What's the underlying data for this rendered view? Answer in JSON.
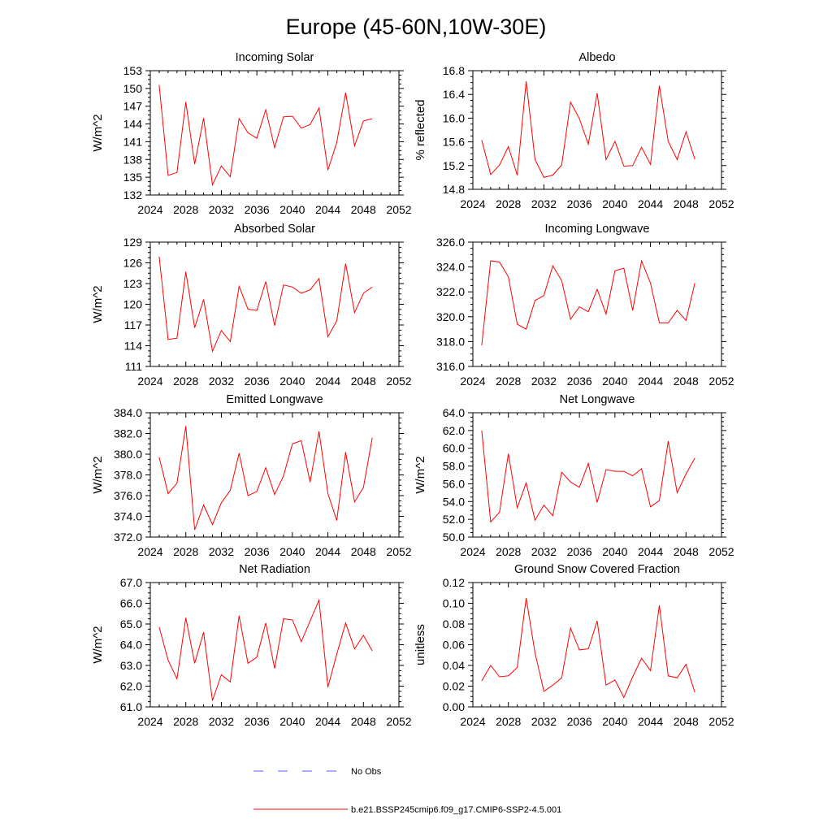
{
  "figure": {
    "title": "Europe (45-60N,10W-30E)"
  },
  "legend": {
    "entries": [
      {
        "label": "No Obs",
        "color": "#5a5aff",
        "dash": true
      },
      {
        "label": "b.e21.BSSP245cmip6.f09_g17.CMIP6-SSP2-4.5.001",
        "color": "#ff0000",
        "dash": false
      }
    ]
  },
  "chart_data": [
    {
      "type": "line",
      "title": "Incoming Solar",
      "xlabel": "",
      "ylabel": "W/m^2",
      "xlim": [
        2024,
        2052
      ],
      "ylim": [
        132,
        153
      ],
      "xticks": [
        2024,
        2028,
        2032,
        2036,
        2040,
        2044,
        2048,
        2052
      ],
      "yticks": [
        132,
        135,
        138,
        141,
        144,
        147,
        150,
        153
      ],
      "ytick_labels": [
        "132",
        "135",
        "138",
        "141",
        "144",
        "147",
        "150",
        "153"
      ],
      "grid": false,
      "series": [
        {
          "color": "#ff0000",
          "x": [
            2025,
            2026,
            2027,
            2028,
            2029,
            2030,
            2031,
            2032,
            2033,
            2034,
            2035,
            2036,
            2037,
            2038,
            2039,
            2040,
            2041,
            2042,
            2043,
            2044,
            2045,
            2046,
            2047,
            2048,
            2049
          ],
          "values": [
            150.6,
            135.3,
            135.8,
            147.7,
            137.2,
            145.0,
            133.7,
            136.9,
            135.1,
            144.9,
            142.5,
            141.6,
            146.4,
            140.0,
            145.2,
            145.3,
            143.3,
            143.9,
            146.7,
            136.2,
            140.9,
            149.3,
            140.3,
            144.5,
            144.9
          ]
        }
      ]
    },
    {
      "type": "line",
      "title": "Albedo",
      "xlabel": "",
      "ylabel": "% reflected",
      "xlim": [
        2024,
        2052
      ],
      "ylim": [
        14.8,
        16.8
      ],
      "xticks": [
        2024,
        2028,
        2032,
        2036,
        2040,
        2044,
        2048,
        2052
      ],
      "yticks": [
        14.8,
        15.2,
        15.6,
        16.0,
        16.4,
        16.8
      ],
      "ytick_labels": [
        "14.8",
        "15.2",
        "15.6",
        "16.0",
        "16.4",
        "16.8"
      ],
      "grid": false,
      "series": [
        {
          "color": "#ff0000",
          "x": [
            2025,
            2026,
            2027,
            2028,
            2029,
            2030,
            2031,
            2032,
            2033,
            2034,
            2035,
            2036,
            2037,
            2038,
            2039,
            2040,
            2041,
            2042,
            2043,
            2044,
            2045,
            2046,
            2047,
            2048,
            2049
          ],
          "values": [
            15.63,
            15.05,
            15.21,
            15.52,
            15.04,
            16.62,
            15.3,
            15.0,
            15.04,
            15.21,
            16.27,
            15.99,
            15.56,
            16.42,
            15.3,
            15.61,
            15.19,
            15.2,
            15.51,
            15.22,
            16.55,
            15.61,
            15.3,
            15.77,
            15.31
          ]
        }
      ]
    },
    {
      "type": "line",
      "title": "Absorbed Solar",
      "xlabel": "",
      "ylabel": "W/m^2",
      "xlim": [
        2024,
        2052
      ],
      "ylim": [
        111,
        129
      ],
      "xticks": [
        2024,
        2028,
        2032,
        2036,
        2040,
        2044,
        2048,
        2052
      ],
      "yticks": [
        111,
        114,
        117,
        120,
        123,
        126,
        129
      ],
      "ytick_labels": [
        "111",
        "114",
        "117",
        "120",
        "123",
        "126",
        "129"
      ],
      "grid": false,
      "series": [
        {
          "color": "#ff0000",
          "x": [
            2025,
            2026,
            2027,
            2028,
            2029,
            2030,
            2031,
            2032,
            2033,
            2034,
            2035,
            2036,
            2037,
            2038,
            2039,
            2040,
            2041,
            2042,
            2043,
            2044,
            2045,
            2046,
            2047,
            2048,
            2049
          ],
          "values": [
            126.9,
            114.9,
            115.1,
            124.7,
            116.6,
            120.7,
            113.2,
            116.2,
            114.6,
            122.6,
            119.3,
            119.1,
            123.3,
            116.9,
            122.8,
            122.5,
            121.6,
            122.1,
            123.7,
            115.3,
            117.6,
            125.9,
            118.8,
            121.6,
            122.5
          ]
        }
      ]
    },
    {
      "type": "line",
      "title": "Incoming Longwave",
      "xlabel": "",
      "ylabel": "",
      "xlim": [
        2024,
        2052
      ],
      "ylim": [
        316.0,
        326.0
      ],
      "xticks": [
        2024,
        2028,
        2032,
        2036,
        2040,
        2044,
        2048,
        2052
      ],
      "yticks": [
        316.0,
        318.0,
        320.0,
        322.0,
        324.0,
        326.0
      ],
      "ytick_labels": [
        "316.0",
        "318.0",
        "320.0",
        "322.0",
        "324.0",
        "326.0"
      ],
      "grid": false,
      "series": [
        {
          "color": "#ff0000",
          "x": [
            2025,
            2026,
            2027,
            2028,
            2029,
            2030,
            2031,
            2032,
            2033,
            2034,
            2035,
            2036,
            2037,
            2038,
            2039,
            2040,
            2041,
            2042,
            2043,
            2044,
            2045,
            2046,
            2047,
            2048,
            2049
          ],
          "values": [
            317.7,
            324.5,
            324.4,
            323.2,
            319.4,
            319.0,
            321.3,
            321.7,
            324.1,
            322.9,
            319.8,
            320.8,
            320.4,
            322.2,
            320.2,
            323.7,
            323.9,
            320.5,
            324.5,
            322.7,
            319.5,
            319.5,
            320.5,
            319.7,
            322.7
          ]
        }
      ]
    },
    {
      "type": "line",
      "title": "Emitted Longwave",
      "xlabel": "",
      "ylabel": "W/m^2",
      "xlim": [
        2024,
        2052
      ],
      "ylim": [
        372.0,
        384.0
      ],
      "xticks": [
        2024,
        2028,
        2032,
        2036,
        2040,
        2044,
        2048,
        2052
      ],
      "yticks": [
        372.0,
        374.0,
        376.0,
        378.0,
        380.0,
        382.0,
        384.0
      ],
      "ytick_labels": [
        "372.0",
        "374.0",
        "376.0",
        "378.0",
        "380.0",
        "382.0",
        "384.0"
      ],
      "grid": false,
      "series": [
        {
          "color": "#ff0000",
          "x": [
            2025,
            2026,
            2027,
            2028,
            2029,
            2030,
            2031,
            2032,
            2033,
            2034,
            2035,
            2036,
            2037,
            2038,
            2039,
            2040,
            2041,
            2042,
            2043,
            2044,
            2045,
            2046,
            2047,
            2048,
            2049
          ],
          "values": [
            379.7,
            376.2,
            377.2,
            382.7,
            372.7,
            375.1,
            373.2,
            375.3,
            376.5,
            380.1,
            376.0,
            376.4,
            378.7,
            376.1,
            377.9,
            381.0,
            381.3,
            377.3,
            382.2,
            376.2,
            373.6,
            380.2,
            375.4,
            376.8,
            381.6
          ]
        }
      ]
    },
    {
      "type": "line",
      "title": "Net Longwave",
      "xlabel": "",
      "ylabel": "W/m^2",
      "xlim": [
        2024,
        2052
      ],
      "ylim": [
        50.0,
        64.0
      ],
      "xticks": [
        2024,
        2028,
        2032,
        2036,
        2040,
        2044,
        2048,
        2052
      ],
      "yticks": [
        50.0,
        52.0,
        54.0,
        56.0,
        58.0,
        60.0,
        62.0,
        64.0
      ],
      "ytick_labels": [
        "50.0",
        "52.0",
        "54.0",
        "56.0",
        "58.0",
        "60.0",
        "62.0",
        "64.0"
      ],
      "grid": false,
      "series": [
        {
          "color": "#ff0000",
          "x": [
            2025,
            2026,
            2027,
            2028,
            2029,
            2030,
            2031,
            2032,
            2033,
            2034,
            2035,
            2036,
            2037,
            2038,
            2039,
            2040,
            2041,
            2042,
            2043,
            2044,
            2045,
            2046,
            2047,
            2048,
            2049
          ],
          "values": [
            62.0,
            51.7,
            52.8,
            59.4,
            53.3,
            56.1,
            51.9,
            53.6,
            52.4,
            57.3,
            56.2,
            55.6,
            58.3,
            53.9,
            57.6,
            57.4,
            57.4,
            56.9,
            57.7,
            53.4,
            54.1,
            60.8,
            55.0,
            57.1,
            58.9
          ]
        }
      ]
    },
    {
      "type": "line",
      "title": "Net Radiation",
      "xlabel": "",
      "ylabel": "W/m^2",
      "xlim": [
        2024,
        2052
      ],
      "ylim": [
        61.0,
        67.0
      ],
      "xticks": [
        2024,
        2028,
        2032,
        2036,
        2040,
        2044,
        2048,
        2052
      ],
      "yticks": [
        61.0,
        62.0,
        63.0,
        64.0,
        65.0,
        66.0,
        67.0
      ],
      "ytick_labels": [
        "61.0",
        "62.0",
        "63.0",
        "64.0",
        "65.0",
        "66.0",
        "67.0"
      ],
      "grid": false,
      "series": [
        {
          "color": "#ff0000",
          "x": [
            2025,
            2026,
            2027,
            2028,
            2029,
            2030,
            2031,
            2032,
            2033,
            2034,
            2035,
            2036,
            2037,
            2038,
            2039,
            2040,
            2041,
            2042,
            2043,
            2044,
            2045,
            2046,
            2047,
            2048,
            2049
          ],
          "values": [
            64.85,
            63.25,
            62.35,
            65.3,
            63.1,
            64.6,
            61.3,
            62.55,
            62.2,
            65.4,
            63.1,
            63.4,
            65.05,
            62.85,
            65.25,
            65.2,
            64.15,
            65.15,
            66.15,
            61.95,
            63.55,
            65.05,
            63.8,
            64.45,
            63.7
          ]
        }
      ]
    },
    {
      "type": "line",
      "title": "Ground Snow Covered Fraction",
      "xlabel": "",
      "ylabel": "unitless",
      "xlim": [
        2024,
        2052
      ],
      "ylim": [
        0.0,
        0.12
      ],
      "xticks": [
        2024,
        2028,
        2032,
        2036,
        2040,
        2044,
        2048,
        2052
      ],
      "yticks": [
        0.0,
        0.02,
        0.04,
        0.06,
        0.08,
        0.1,
        0.12
      ],
      "ytick_labels": [
        "0.00",
        "0.02",
        "0.04",
        "0.06",
        "0.08",
        "0.10",
        "0.12"
      ],
      "grid": false,
      "series": [
        {
          "color": "#ff0000",
          "x": [
            2025,
            2026,
            2027,
            2028,
            2029,
            2030,
            2031,
            2032,
            2033,
            2034,
            2035,
            2036,
            2037,
            2038,
            2039,
            2040,
            2041,
            2042,
            2043,
            2044,
            2045,
            2046,
            2047,
            2048,
            2049
          ],
          "values": [
            0.025,
            0.04,
            0.029,
            0.03,
            0.038,
            0.105,
            0.052,
            0.015,
            0.021,
            0.028,
            0.076,
            0.055,
            0.056,
            0.083,
            0.021,
            0.026,
            0.009,
            0.029,
            0.047,
            0.035,
            0.098,
            0.03,
            0.028,
            0.041,
            0.014
          ]
        }
      ]
    }
  ]
}
